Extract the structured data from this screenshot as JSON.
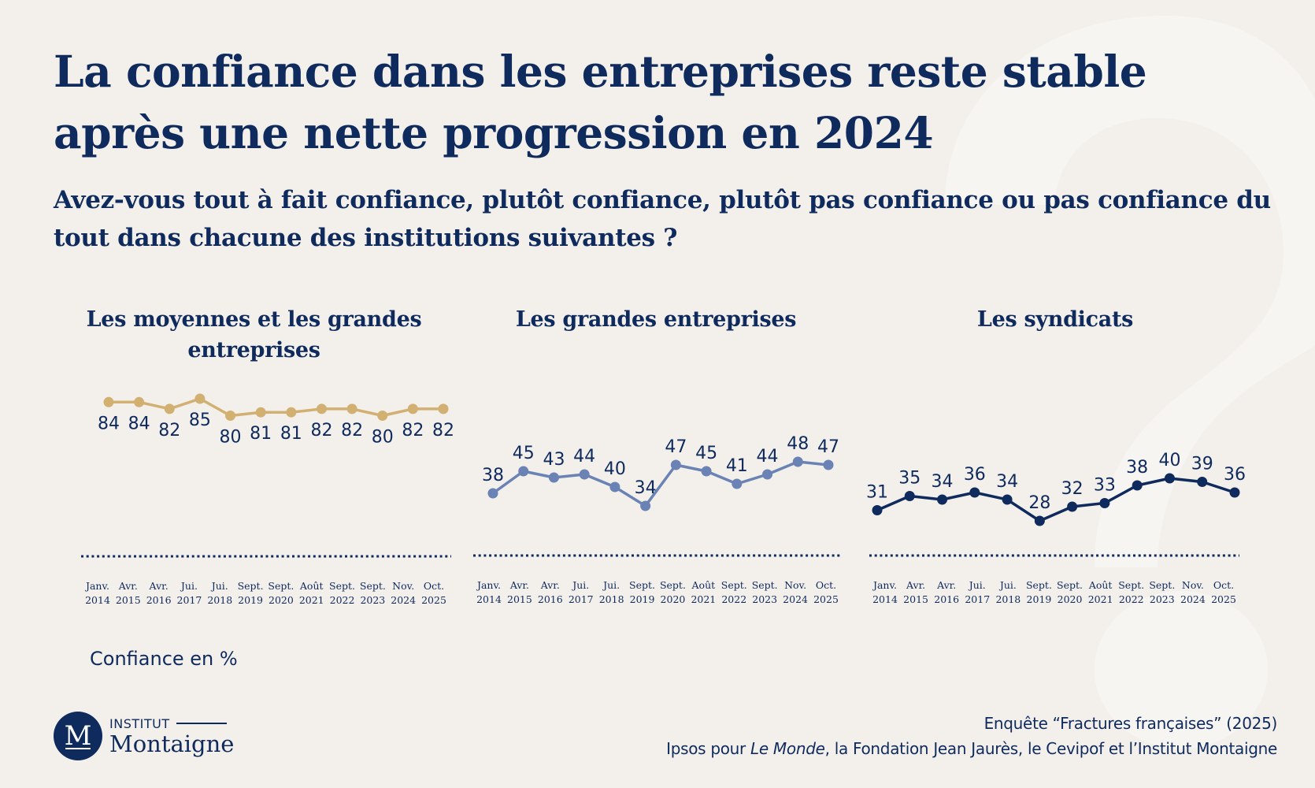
{
  "header": {
    "title": "La confiance dans les entreprises reste stable après une nette progression en 2024",
    "question": "Avez-vous tout à fait confiance, plutôt confiance, plutôt pas confiance ou pas confiance du tout dans chacune des institutions suivantes ?"
  },
  "unit_label": "Confiance en %",
  "logo": {
    "line1": "INSTITUT",
    "line2": "Montaigne",
    "monogram": "M"
  },
  "source": {
    "line1": "Enquête “Fractures françaises” (2025)",
    "line2_prefix": "Ipsos pour ",
    "line2_italic": "Le Monde",
    "line2_suffix": ", la Fondation Jean Jaurès, le Cevipof et l’Institut Montaigne"
  },
  "colors": {
    "text": "#0f2a5c",
    "background": "#f3f0ec",
    "series_1": "#d2b071",
    "series_2": "#6a82b4",
    "series_3": "#0f2a5c"
  },
  "chart_data": [
    {
      "type": "line",
      "title": "Les moyennes et les grandes entreprises",
      "categories": [
        [
          "Janv.",
          "2014"
        ],
        [
          "Avr.",
          "2015"
        ],
        [
          "Avr.",
          "2016"
        ],
        [
          "Jui.",
          "2017"
        ],
        [
          "Jui.",
          "2018"
        ],
        [
          "Sept.",
          "2019"
        ],
        [
          "Sept.",
          "2020"
        ],
        [
          "Août",
          "2021"
        ],
        [
          "Sept.",
          "2022"
        ],
        [
          "Sept.",
          "2023"
        ],
        [
          "Nov.",
          "2024"
        ],
        [
          "Oct.",
          "2025"
        ]
      ],
      "values": [
        84,
        84,
        82,
        85,
        80,
        81,
        81,
        82,
        82,
        80,
        82,
        82
      ],
      "labels_position": "below",
      "xlabel": "",
      "ylabel": "Confiance en %",
      "grid": false,
      "color": "#d2b071"
    },
    {
      "type": "line",
      "title": "Les grandes entreprises",
      "categories": [
        [
          "Janv.",
          "2014"
        ],
        [
          "Avr.",
          "2015"
        ],
        [
          "Avr.",
          "2016"
        ],
        [
          "Jui.",
          "2017"
        ],
        [
          "Jui.",
          "2018"
        ],
        [
          "Sept.",
          "2019"
        ],
        [
          "Sept.",
          "2020"
        ],
        [
          "Août",
          "2021"
        ],
        [
          "Sept.",
          "2022"
        ],
        [
          "Sept.",
          "2023"
        ],
        [
          "Nov.",
          "2024"
        ],
        [
          "Oct.",
          "2025"
        ]
      ],
      "values": [
        38,
        45,
        43,
        44,
        40,
        34,
        47,
        45,
        41,
        44,
        48,
        47
      ],
      "labels_position": "above",
      "xlabel": "",
      "ylabel": "Confiance en %",
      "grid": false,
      "color": "#6a82b4"
    },
    {
      "type": "line",
      "title": "Les syndicats",
      "categories": [
        [
          "Janv.",
          "2014"
        ],
        [
          "Avr.",
          "2015"
        ],
        [
          "Avr.",
          "2016"
        ],
        [
          "Jui.",
          "2017"
        ],
        [
          "Jui.",
          "2018"
        ],
        [
          "Sept.",
          "2019"
        ],
        [
          "Sept.",
          "2020"
        ],
        [
          "Août",
          "2021"
        ],
        [
          "Sept.",
          "2022"
        ],
        [
          "Sept.",
          "2023"
        ],
        [
          "Nov.",
          "2024"
        ],
        [
          "Oct.",
          "2025"
        ]
      ],
      "values": [
        31,
        35,
        34,
        36,
        34,
        28,
        32,
        33,
        38,
        40,
        39,
        36
      ],
      "labels_position": "above",
      "xlabel": "",
      "ylabel": "Confiance en %",
      "grid": false,
      "color": "#0f2a5c"
    }
  ]
}
